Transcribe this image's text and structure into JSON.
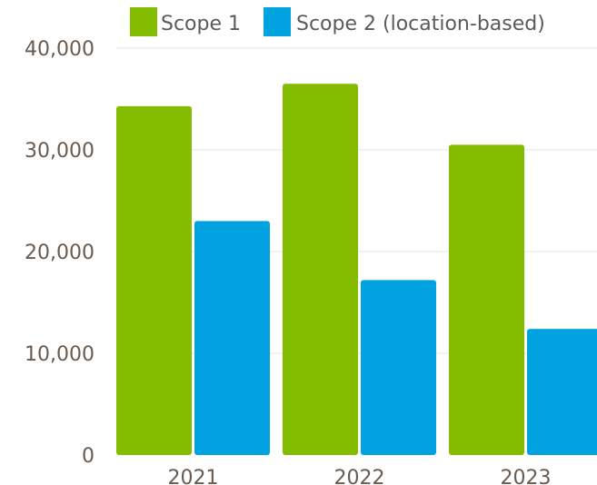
{
  "chart_data": {
    "type": "bar",
    "title": "",
    "xlabel": "",
    "ylabel": "",
    "categories": [
      "2021",
      "2022",
      "2023"
    ],
    "series": [
      {
        "name": "Scope 1",
        "values": [
          34300,
          36500,
          30500
        ],
        "color": "#84bd00"
      },
      {
        "name": "Scope 2 (location-based)",
        "values": [
          23000,
          17200,
          12400
        ],
        "color": "#00a3e0"
      }
    ],
    "ylim": [
      0,
      40000
    ],
    "yticks": [
      "0",
      "10,000",
      "20,000",
      "30,000",
      "40,000"
    ],
    "grid": true,
    "legend": "top-right"
  }
}
